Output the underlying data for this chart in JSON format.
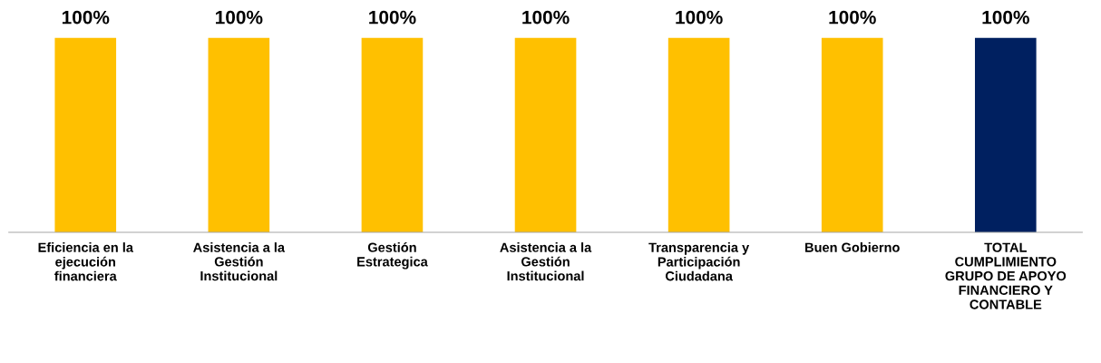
{
  "chart_data": {
    "type": "bar",
    "categories": [
      "Eficiencia en la ejecución financiera",
      "Asistencia a la Gestión Institucional",
      "Gestión Estrategica",
      "Asistencia a la Gestión Institucional",
      "Transparencia y Participación Ciudadana",
      "Buen Gobierno",
      "TOTAL CUMPLIMIENTO GRUPO DE APOYO FINANCIERO Y CONTABLE"
    ],
    "values": [
      100,
      100,
      100,
      100,
      100,
      100,
      100
    ],
    "colors": [
      "#ffc000",
      "#ffc000",
      "#ffc000",
      "#ffc000",
      "#ffc000",
      "#ffc000",
      "#002060"
    ],
    "value_labels": [
      "100%",
      "100%",
      "100%",
      "100%",
      "100%",
      "100%",
      "100%"
    ],
    "grid": false,
    "legend": false
  }
}
